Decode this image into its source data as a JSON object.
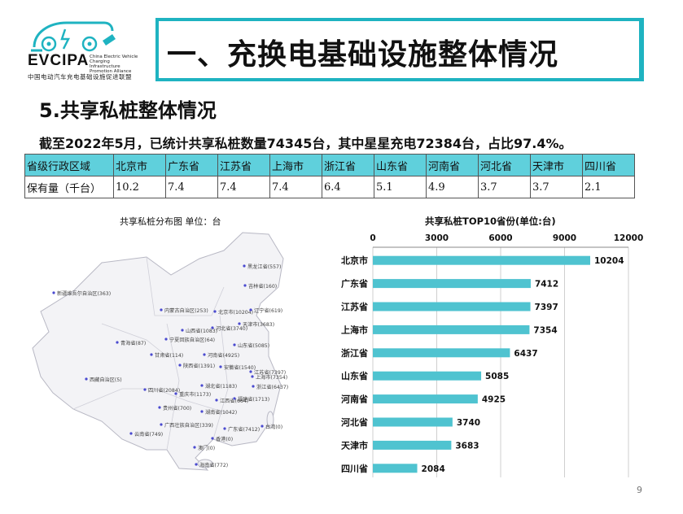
{
  "logo": {
    "name": "EVCIPA",
    "subtitle_lines": [
      "China Electric Vehicle",
      "Charging Infrastructure",
      "Promotion Alliance"
    ],
    "cn_name": "中国电动汽车充电基础设施促进联盟"
  },
  "header": {
    "title": "一、充换电基础设施整体情况"
  },
  "section_title": "5.共享私桩整体情况",
  "summary": "截至2022年5月，已统计共享私桩数量74345台，其中星星充电72384台，占比97.4%。",
  "table": {
    "header_label": "省级行政区域",
    "row_label": "保有量（千台）",
    "provinces": [
      "北京市",
      "广东省",
      "江苏省",
      "上海市",
      "浙江省",
      "山东省",
      "河南省",
      "河北省",
      "天津市",
      "四川省"
    ],
    "values": [
      "10.2",
      "7.4",
      "7.4",
      "7.4",
      "6.4",
      "5.1",
      "4.9",
      "3.7",
      "3.7",
      "2.1"
    ]
  },
  "map": {
    "title": "共享私桩分布图  单位：台",
    "labels": [
      "黑龙江省(557)",
      "吉林省(160)",
      "新疆维吾尔自治区(363)",
      "内蒙古自治区(253)",
      "北京市(10204)",
      "辽宁省(619)",
      "天津市(3683)",
      "河北省(3740)",
      "山西省(1083)",
      "宁夏回族自治区(64)",
      "山东省(5085)",
      "青海省(87)",
      "甘肃省(114)",
      "河南省(4925)",
      "江苏省(7397)",
      "陕西省(1391)",
      "安徽省(1540)",
      "上海市(7354)",
      "西藏自治区(5)",
      "湖北省(1183)",
      "浙江省(6437)",
      "四川省(2084)",
      "重庆市(1173)",
      "江西省(664)",
      "贵州省(700)",
      "湖南省(1042)",
      "福建省(1713)",
      "广西壮族自治区(339)",
      "广东省(7412)",
      "台湾(0)",
      "云南省(749)",
      "香港(0)",
      "澳门(0)",
      "海南省(772)"
    ]
  },
  "chart_data": {
    "type": "bar",
    "orientation": "horizontal",
    "title": "共享私桩TOP10省份(单位:台)",
    "categories": [
      "北京市",
      "广东省",
      "江苏省",
      "上海市",
      "浙江省",
      "山东省",
      "河南省",
      "河北省",
      "天津市",
      "四川省"
    ],
    "values": [
      10204,
      7412,
      7397,
      7354,
      6437,
      5085,
      4925,
      3740,
      3683,
      2084
    ],
    "xlim": [
      0,
      12000
    ],
    "xticks": [
      0,
      3000,
      6000,
      9000,
      12000
    ],
    "grid": true,
    "axis_position": "top",
    "bar_color": "#4fc3d0"
  },
  "page_number": "9",
  "colors": {
    "accent": "#1fb3c1",
    "table_header": "#5fd0dc",
    "bar": "#4fc3d0"
  }
}
